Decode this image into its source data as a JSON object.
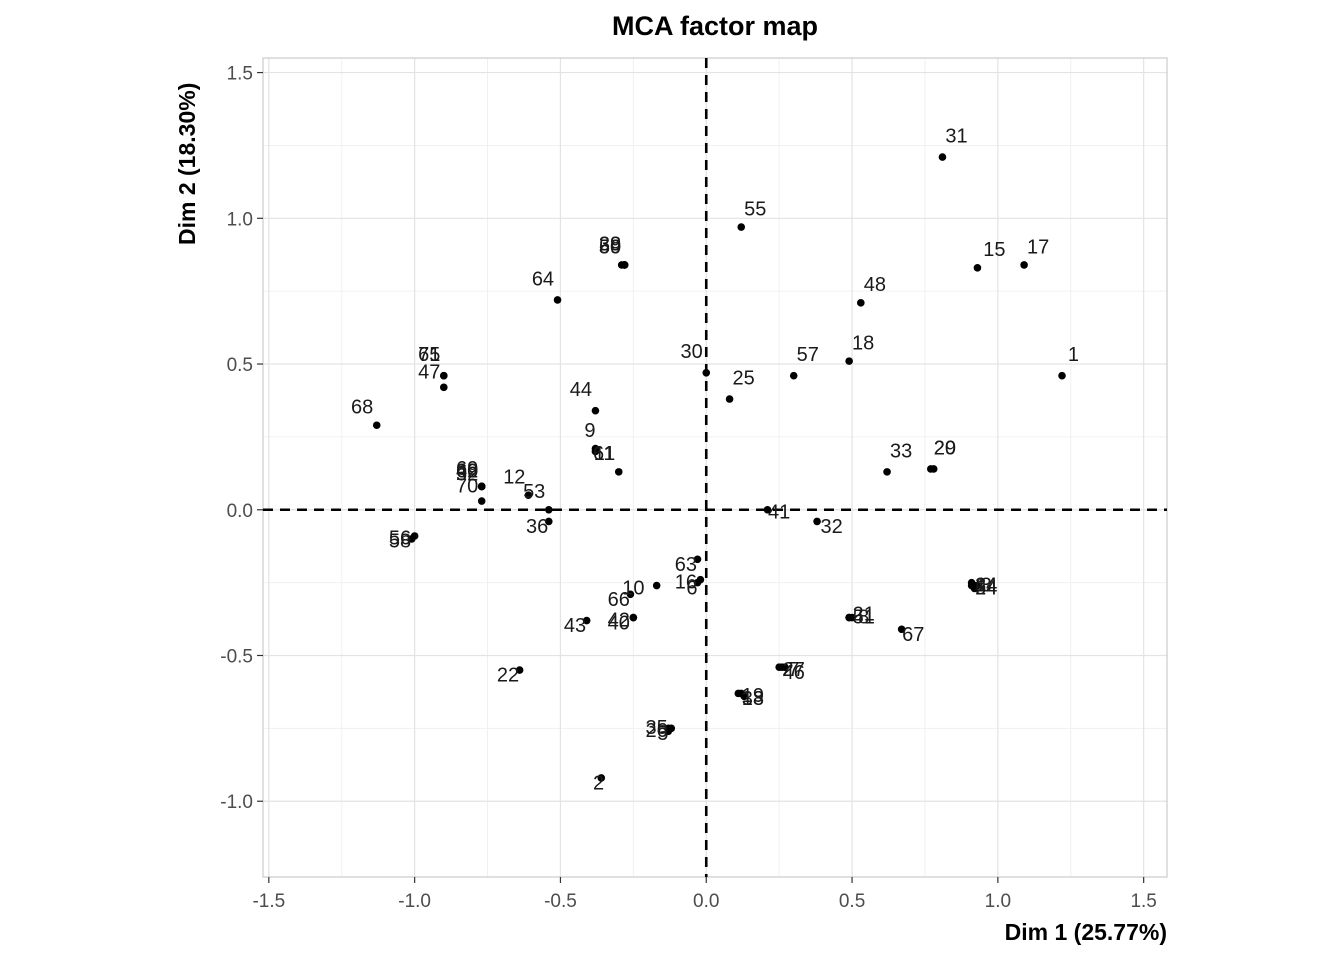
{
  "chart_data": {
    "type": "scatter",
    "title": "MCA factor map",
    "xlabel": "Dim 1 (25.77%)",
    "ylabel": "Dim 2 (18.30%)",
    "xlim": [
      -1.52,
      1.58
    ],
    "ylim": [
      -1.26,
      1.55
    ],
    "xticks": [
      -1.5,
      -1.0,
      -0.5,
      0.0,
      0.5,
      1.0,
      1.5
    ],
    "xtick_labels": [
      "-1.5",
      "-1.0",
      "-0.5",
      "0.0",
      "0.5",
      "1.0",
      "1.5"
    ],
    "yticks": [
      -1.0,
      -0.5,
      0.0,
      0.5,
      1.0,
      1.5
    ],
    "ytick_labels": [
      "-1.0",
      "-0.5",
      "0.0",
      "0.5",
      "1.0",
      "1.5"
    ],
    "grid": true,
    "reference_lines": {
      "x": 0,
      "y": 0,
      "style": "dashed"
    },
    "points": [
      {
        "label": "1",
        "x": 1.22,
        "y": 0.46
      },
      {
        "label": "2",
        "x": -0.36,
        "y": -0.92
      },
      {
        "label": "3",
        "x": 0.93,
        "y": -0.26
      },
      {
        "label": "5",
        "x": -0.12,
        "y": -0.75
      },
      {
        "label": "6",
        "x": -0.02,
        "y": -0.24
      },
      {
        "label": "7",
        "x": 0.27,
        "y": -0.54
      },
      {
        "label": "8",
        "x": 0.49,
        "y": -0.37
      },
      {
        "label": "9",
        "x": -0.38,
        "y": 0.21
      },
      {
        "label": "10",
        "x": -0.26,
        "y": -0.29
      },
      {
        "label": "11",
        "x": -0.38,
        "y": 0.2
      },
      {
        "label": "12",
        "x": -0.61,
        "y": 0.05
      },
      {
        "label": "13",
        "x": 0.12,
        "y": -0.63
      },
      {
        "label": "14",
        "x": 0.92,
        "y": -0.26
      },
      {
        "label": "15",
        "x": 0.93,
        "y": 0.83
      },
      {
        "label": "16",
        "x": -0.03,
        "y": -0.25
      },
      {
        "label": "17",
        "x": 1.09,
        "y": 0.84
      },
      {
        "label": "18",
        "x": 0.49,
        "y": 0.51
      },
      {
        "label": "19",
        "x": 0.13,
        "y": -0.64
      },
      {
        "label": "20",
        "x": 0.77,
        "y": 0.14
      },
      {
        "label": "21",
        "x": 0.49,
        "y": -0.37
      },
      {
        "label": "22",
        "x": -0.64,
        "y": -0.55
      },
      {
        "label": "24",
        "x": 0.92,
        "y": -0.27
      },
      {
        "label": "25",
        "x": 0.08,
        "y": 0.38
      },
      {
        "label": "26",
        "x": -0.13,
        "y": -0.76
      },
      {
        "label": "27",
        "x": 0.26,
        "y": -0.54
      },
      {
        "label": "28",
        "x": -0.28,
        "y": 0.84
      },
      {
        "label": "29",
        "x": 0.78,
        "y": 0.14
      },
      {
        "label": "30",
        "x": 0.0,
        "y": 0.47
      },
      {
        "label": "31",
        "x": 0.81,
        "y": 1.21
      },
      {
        "label": "32",
        "x": 0.38,
        "y": -0.04
      },
      {
        "label": "33",
        "x": 0.62,
        "y": 0.13
      },
      {
        "label": "34",
        "x": 0.91,
        "y": -0.25
      },
      {
        "label": "35",
        "x": -0.13,
        "y": -0.75
      },
      {
        "label": "36",
        "x": -0.54,
        "y": -0.04
      },
      {
        "label": "38",
        "x": 0.11,
        "y": -0.63
      },
      {
        "label": "39",
        "x": -0.28,
        "y": 0.84
      },
      {
        "label": "40",
        "x": -0.25,
        "y": -0.37
      },
      {
        "label": "41",
        "x": 0.21,
        "y": 0.0
      },
      {
        "label": "42",
        "x": -0.25,
        "y": -0.37
      },
      {
        "label": "43",
        "x": -0.41,
        "y": -0.38
      },
      {
        "label": "44",
        "x": -0.38,
        "y": 0.34
      },
      {
        "label": "46",
        "x": 0.25,
        "y": -0.54
      },
      {
        "label": "47",
        "x": -0.9,
        "y": 0.42
      },
      {
        "label": "48",
        "x": 0.53,
        "y": 0.71
      },
      {
        "label": "49",
        "x": -0.77,
        "y": 0.08
      },
      {
        "label": "50",
        "x": -0.28,
        "y": 0.84
      },
      {
        "label": "51",
        "x": 0.5,
        "y": -0.37
      },
      {
        "label": "52",
        "x": -0.77,
        "y": 0.08
      },
      {
        "label": "53",
        "x": -0.54,
        "y": 0.0
      },
      {
        "label": "54",
        "x": 0.91,
        "y": -0.26
      },
      {
        "label": "55",
        "x": 0.12,
        "y": 0.97
      },
      {
        "label": "56",
        "x": -1.0,
        "y": -0.09
      },
      {
        "label": "57",
        "x": 0.3,
        "y": 0.46
      },
      {
        "label": "58",
        "x": -1.01,
        "y": -0.1
      },
      {
        "label": "59",
        "x": -0.29,
        "y": 0.84
      },
      {
        "label": "60",
        "x": -0.77,
        "y": 0.08
      },
      {
        "label": "61",
        "x": -0.3,
        "y": 0.13
      },
      {
        "label": "62",
        "x": -0.77,
        "y": 0.08
      },
      {
        "label": "63",
        "x": -0.03,
        "y": -0.17
      },
      {
        "label": "64",
        "x": -0.51,
        "y": 0.72
      },
      {
        "label": "65",
        "x": -0.9,
        "y": 0.46
      },
      {
        "label": "66",
        "x": -0.17,
        "y": -0.26
      },
      {
        "label": "67",
        "x": 0.67,
        "y": -0.41
      },
      {
        "label": "68",
        "x": -1.13,
        "y": 0.29
      },
      {
        "label": "69",
        "x": -0.77,
        "y": 0.08
      },
      {
        "label": "70",
        "x": -0.77,
        "y": 0.03
      },
      {
        "label": "71",
        "x": -0.9,
        "y": 0.46
      }
    ],
    "labels": [
      {
        "text": "1",
        "x": 1.24,
        "y": 0.51,
        "anchor": "start"
      },
      {
        "text": "2",
        "x": -0.35,
        "y": -0.96,
        "anchor": "end"
      },
      {
        "text": "5",
        "x": -0.13,
        "y": -0.79,
        "anchor": "end"
      },
      {
        "text": "6",
        "x": -0.03,
        "y": -0.29,
        "anchor": "end"
      },
      {
        "text": "9",
        "x": -0.38,
        "y": 0.25,
        "anchor": "end"
      },
      {
        "text": "10",
        "x": -0.25,
        "y": -0.29,
        "anchor": "middle"
      },
      {
        "text": "11",
        "x": -0.35,
        "y": 0.17,
        "anchor": "middle"
      },
      {
        "text": "12",
        "x": -0.62,
        "y": 0.09,
        "anchor": "end"
      },
      {
        "text": "13",
        "x": 0.16,
        "y": -0.67,
        "anchor": "middle"
      },
      {
        "text": "14",
        "x": 0.96,
        "y": -0.28,
        "anchor": "middle"
      },
      {
        "text": "15",
        "x": 0.95,
        "y": 0.87,
        "anchor": "start"
      },
      {
        "text": "16",
        "x": -0.07,
        "y": -0.27,
        "anchor": "middle"
      },
      {
        "text": "17",
        "x": 1.1,
        "y": 0.88,
        "anchor": "start"
      },
      {
        "text": "18",
        "x": 0.5,
        "y": 0.55,
        "anchor": "start"
      },
      {
        "text": "19",
        "x": 0.16,
        "y": -0.66,
        "anchor": "middle"
      },
      {
        "text": "20",
        "x": 0.78,
        "y": 0.19,
        "anchor": "start"
      },
      {
        "text": "21",
        "x": 0.54,
        "y": -0.38,
        "anchor": "middle"
      },
      {
        "text": "22",
        "x": -0.68,
        "y": -0.59,
        "anchor": "middle"
      },
      {
        "text": "25",
        "x": 0.09,
        "y": 0.43,
        "anchor": "start"
      },
      {
        "text": "26",
        "x": -0.17,
        "y": -0.78,
        "anchor": "middle"
      },
      {
        "text": "27",
        "x": 0.3,
        "y": -0.57,
        "anchor": "middle"
      },
      {
        "text": "28",
        "x": -0.33,
        "y": 0.89,
        "anchor": "middle"
      },
      {
        "text": "29",
        "x": 0.78,
        "y": 0.19,
        "anchor": "start"
      },
      {
        "text": "30",
        "x": -0.05,
        "y": 0.52,
        "anchor": "middle"
      },
      {
        "text": "31",
        "x": 0.82,
        "y": 1.26,
        "anchor": "start"
      },
      {
        "text": "32",
        "x": 0.43,
        "y": -0.08,
        "anchor": "middle"
      },
      {
        "text": "33",
        "x": 0.63,
        "y": 0.18,
        "anchor": "start"
      },
      {
        "text": "35",
        "x": -0.17,
        "y": -0.77,
        "anchor": "middle"
      },
      {
        "text": "36",
        "x": -0.58,
        "y": -0.08,
        "anchor": "middle"
      },
      {
        "text": "39",
        "x": -0.33,
        "y": 0.89,
        "anchor": "middle"
      },
      {
        "text": "40",
        "x": -0.3,
        "y": -0.41,
        "anchor": "middle"
      },
      {
        "text": "41",
        "x": 0.25,
        "y": -0.03,
        "anchor": "middle"
      },
      {
        "text": "42",
        "x": -0.3,
        "y": -0.4,
        "anchor": "middle"
      },
      {
        "text": "43",
        "x": -0.45,
        "y": -0.42,
        "anchor": "middle"
      },
      {
        "text": "44",
        "x": -0.43,
        "y": 0.39,
        "anchor": "middle"
      },
      {
        "text": "46",
        "x": 0.3,
        "y": -0.58,
        "anchor": "middle"
      },
      {
        "text": "47",
        "x": -0.95,
        "y": 0.45,
        "anchor": "middle"
      },
      {
        "text": "48",
        "x": 0.54,
        "y": 0.75,
        "anchor": "start"
      },
      {
        "text": "49",
        "x": -0.82,
        "y": 0.11,
        "anchor": "middle"
      },
      {
        "text": "50",
        "x": -0.33,
        "y": 0.88,
        "anchor": "middle"
      },
      {
        "text": "51",
        "x": 0.54,
        "y": -0.39,
        "anchor": "middle"
      },
      {
        "text": "52",
        "x": -0.82,
        "y": 0.1,
        "anchor": "middle"
      },
      {
        "text": "53",
        "x": -0.59,
        "y": 0.04,
        "anchor": "middle"
      },
      {
        "text": "54",
        "x": 0.96,
        "y": -0.29,
        "anchor": "middle"
      },
      {
        "text": "55",
        "x": 0.13,
        "y": 1.01,
        "anchor": "start"
      },
      {
        "text": "56",
        "x": -1.05,
        "y": -0.12,
        "anchor": "middle"
      },
      {
        "text": "57",
        "x": 0.31,
        "y": 0.51,
        "anchor": "start"
      },
      {
        "text": "58",
        "x": -1.05,
        "y": -0.13,
        "anchor": "middle"
      },
      {
        "text": "59",
        "x": -0.33,
        "y": 0.88,
        "anchor": "middle"
      },
      {
        "text": "61",
        "x": -0.35,
        "y": 0.17,
        "anchor": "middle"
      },
      {
        "text": "62",
        "x": -0.82,
        "y": 0.11,
        "anchor": "middle"
      },
      {
        "text": "63",
        "x": -0.07,
        "y": -0.21,
        "anchor": "middle"
      },
      {
        "text": "64",
        "x": -0.56,
        "y": 0.77,
        "anchor": "middle"
      },
      {
        "text": "65",
        "x": -0.95,
        "y": 0.51,
        "anchor": "middle"
      },
      {
        "text": "66",
        "x": -0.3,
        "y": -0.33,
        "anchor": "middle"
      },
      {
        "text": "67",
        "x": 0.71,
        "y": -0.45,
        "anchor": "middle"
      },
      {
        "text": "68",
        "x": -1.18,
        "y": 0.33,
        "anchor": "middle"
      },
      {
        "text": "69",
        "x": -0.82,
        "y": 0.12,
        "anchor": "middle"
      },
      {
        "text": "70",
        "x": -0.82,
        "y": 0.06,
        "anchor": "middle"
      },
      {
        "text": "71",
        "x": -0.95,
        "y": 0.51,
        "anchor": "middle"
      },
      {
        "text": "3",
        "x": 0.96,
        "y": -0.28,
        "anchor": "middle"
      },
      {
        "text": "7",
        "x": 0.3,
        "y": -0.57,
        "anchor": "middle"
      },
      {
        "text": "8",
        "x": 0.54,
        "y": -0.39,
        "anchor": "middle"
      },
      {
        "text": "24",
        "x": 0.96,
        "y": -0.29,
        "anchor": "middle"
      },
      {
        "text": "34",
        "x": 0.96,
        "y": -0.28,
        "anchor": "middle"
      },
      {
        "text": "38",
        "x": 0.16,
        "y": -0.67,
        "anchor": "middle"
      },
      {
        "text": "60",
        "x": -0.82,
        "y": 0.11,
        "anchor": "middle"
      }
    ]
  }
}
